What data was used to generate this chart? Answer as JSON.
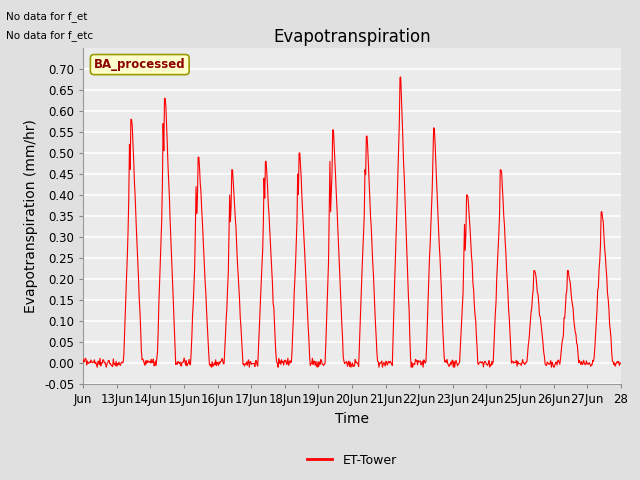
{
  "title": "Evapotranspiration",
  "xlabel": "Time",
  "ylabel": "Evapotranspiration (mm/hr)",
  "ylim": [
    -0.05,
    0.75
  ],
  "yticks": [
    -0.05,
    0.0,
    0.05,
    0.1,
    0.15,
    0.2,
    0.25,
    0.3,
    0.35,
    0.4,
    0.45,
    0.5,
    0.55,
    0.6,
    0.65,
    0.7
  ],
  "xlim_start": 12,
  "xlim_end": 28,
  "xtick_labels": [
    "Jun",
    "13Jun",
    "14Jun",
    "15Jun",
    "16Jun",
    "17Jun",
    "18Jun",
    "19Jun",
    "20Jun",
    "21Jun",
    "22Jun",
    "23Jun",
    "24Jun",
    "25Jun",
    "26Jun",
    "27Jun",
    "28"
  ],
  "xtick_positions": [
    12,
    13,
    14,
    15,
    16,
    17,
    18,
    19,
    20,
    21,
    22,
    23,
    24,
    25,
    26,
    27,
    28
  ],
  "no_data_text1": "No data for f_et",
  "no_data_text2": "No data for f_etc",
  "legend_box_label": "BA_processed",
  "legend_line_label": "ET-Tower",
  "line_color": "#FF0000",
  "background_color": "#E0E0E0",
  "plot_bg_color": "#EBEBEB",
  "legend_box_bg": "#FFFFCC",
  "legend_box_edge": "#999900",
  "title_fontsize": 12,
  "axis_fontsize": 10,
  "tick_fontsize": 8.5
}
